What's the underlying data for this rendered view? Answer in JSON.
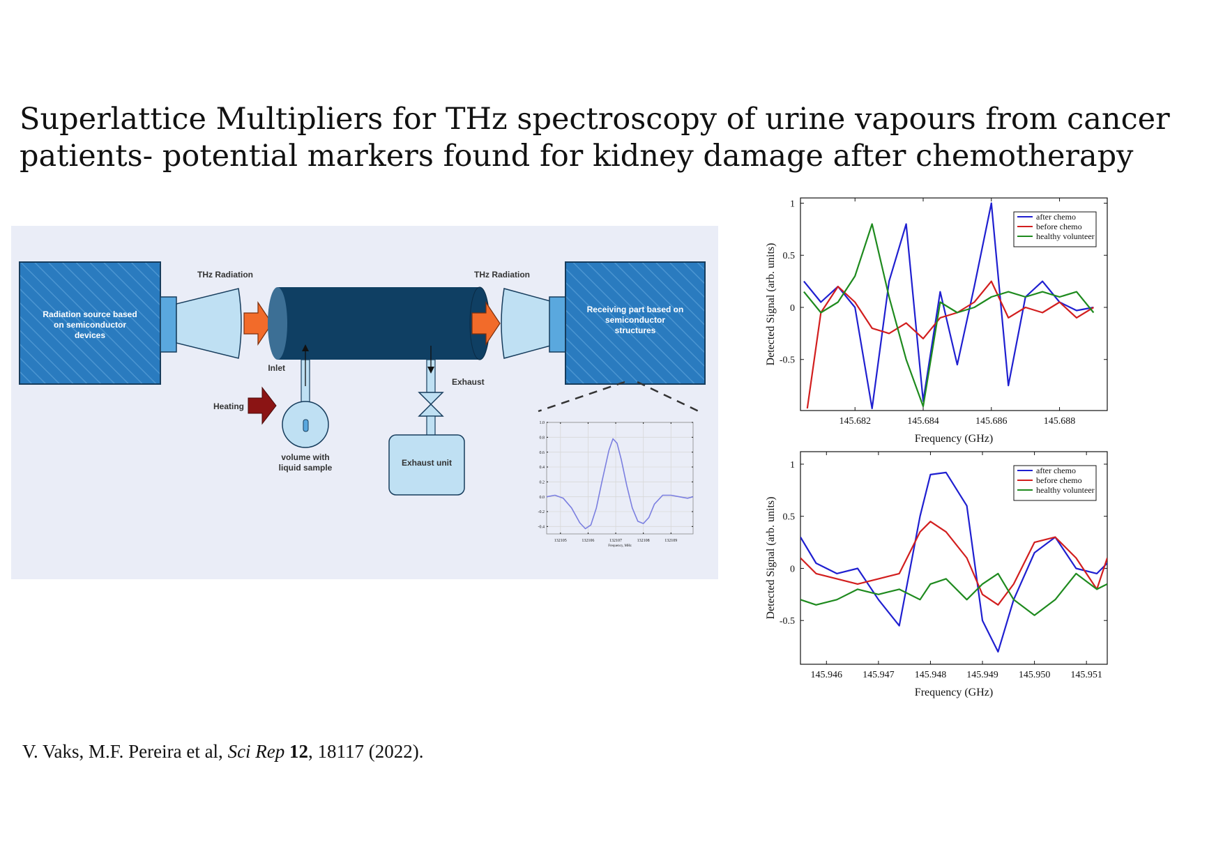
{
  "slide": {
    "title_line1": "Superlattice Multipliers  for THz spectroscopy of urine vapours from cancer",
    "title_line2": "patients- potential markers found for kidney damage after chemotherapy",
    "citation": {
      "authors": "V. Vaks, M.F. Pereira et al, ",
      "journal": "Sci Rep",
      "volume": "12",
      "rest": ", 18117 (2022)."
    }
  },
  "diagram": {
    "source_label": [
      "Radiation source based",
      "on semiconductor",
      "devices"
    ],
    "thz_left": "THz Radiation",
    "thz_right": "THz Radiation",
    "receiver_label": [
      "Receiving part based on",
      "semiconductor",
      "structures"
    ],
    "inlet": "Inlet",
    "exhaust": "Exhaust",
    "heating": "Heating",
    "volume_label": [
      "volume with",
      "liquid sample"
    ],
    "exhaust_unit": "Exhaust unit",
    "colors": {
      "box": "#2a7bbf",
      "tube": "#0f3f63",
      "cone": "#bfe0f3",
      "arrow": "#f26b2a",
      "heat": "#8b1414"
    }
  },
  "chart_data": [
    {
      "type": "line",
      "xlabel": "Frequency, MHz",
      "ylabel": "",
      "xlim": [
        132104.5,
        132109.8
      ],
      "ylim": [
        -0.5,
        1.0
      ],
      "x_ticks": [
        "132105",
        "132106",
        "132107",
        "132108",
        "132109"
      ],
      "y_ticks": [
        "1.0",
        "0.8",
        "0.6",
        "0.4",
        "0.2",
        "0.0",
        "-0.2",
        "-0.4"
      ],
      "grid": true,
      "series": [
        {
          "color": "#7b7fe0",
          "x": [
            132104.5,
            132104.8,
            132105.1,
            132105.4,
            132105.7,
            132105.9,
            132106.1,
            132106.3,
            132106.5,
            132106.75,
            132106.9,
            132107.05,
            132107.2,
            132107.4,
            132107.6,
            132107.8,
            132108.0,
            132108.2,
            132108.4,
            132108.7,
            132109.0,
            132109.3,
            132109.6,
            132109.8
          ],
          "y": [
            0.0,
            0.02,
            -0.02,
            -0.15,
            -0.35,
            -0.43,
            -0.38,
            -0.15,
            0.2,
            0.62,
            0.78,
            0.72,
            0.5,
            0.15,
            -0.15,
            -0.33,
            -0.36,
            -0.28,
            -0.1,
            0.02,
            0.02,
            0.0,
            -0.02,
            0.0
          ]
        }
      ]
    },
    {
      "type": "line",
      "xlabel": "Frequency (GHz)",
      "ylabel": "Detected Signal (arb. units)",
      "xlim": [
        145.6804,
        145.6894
      ],
      "ylim": [
        -0.99,
        1.05
      ],
      "x_ticks": [
        "145.682",
        "145.684",
        "145.686",
        "145.688"
      ],
      "y_ticks": [
        "1",
        "0.5",
        "0",
        "-0.5"
      ],
      "grid": false,
      "legend": "top-right",
      "series": [
        {
          "name": "after chemo",
          "color": "#1f1fd0",
          "x": [
            145.6805,
            145.681,
            145.6815,
            145.682,
            145.6825,
            145.683,
            145.6835,
            145.684,
            145.6845,
            145.685,
            145.6855,
            145.686,
            145.6865,
            145.687,
            145.6875,
            145.688,
            145.6885,
            145.689
          ],
          "y": [
            0.25,
            0.05,
            0.2,
            0.0,
            -0.97,
            0.25,
            0.8,
            -0.9,
            0.15,
            -0.55,
            0.2,
            1.0,
            -0.75,
            0.1,
            0.25,
            0.05,
            -0.03,
            0.0
          ]
        },
        {
          "name": "before chemo",
          "color": "#d21e1e",
          "x": [
            145.6806,
            145.681,
            145.6815,
            145.682,
            145.6825,
            145.683,
            145.6835,
            145.684,
            145.6845,
            145.685,
            145.6855,
            145.686,
            145.6865,
            145.687,
            145.6875,
            145.688,
            145.6885,
            145.689
          ],
          "y": [
            -0.97,
            -0.05,
            0.2,
            0.05,
            -0.2,
            -0.25,
            -0.15,
            -0.3,
            -0.1,
            -0.05,
            0.05,
            0.25,
            -0.1,
            0.0,
            -0.05,
            0.05,
            -0.1,
            0.0
          ]
        },
        {
          "name": "healthy volunteer",
          "color": "#1e8a1e",
          "x": [
            145.6805,
            145.681,
            145.6815,
            145.682,
            145.6825,
            145.683,
            145.6835,
            145.684,
            145.6845,
            145.685,
            145.6855,
            145.686,
            145.6865,
            145.687,
            145.6875,
            145.688,
            145.6885,
            145.689
          ],
          "y": [
            0.15,
            -0.05,
            0.05,
            0.3,
            0.8,
            0.1,
            -0.5,
            -0.95,
            0.05,
            -0.05,
            0.0,
            0.1,
            0.15,
            0.1,
            0.15,
            0.1,
            0.15,
            -0.05
          ]
        }
      ]
    },
    {
      "type": "line",
      "xlabel": "Frequency (GHz)",
      "ylabel": "Detected Signal (arb. units)",
      "xlim": [
        145.9455,
        145.9514
      ],
      "ylim": [
        -0.92,
        1.12
      ],
      "x_ticks": [
        "145.946",
        "145.947",
        "145.948",
        "145.949",
        "145.950",
        "145.951"
      ],
      "y_ticks": [
        "1",
        "0.5",
        "0",
        "-0.5"
      ],
      "grid": false,
      "legend": "top-right",
      "series": [
        {
          "name": "after chemo",
          "color": "#1f1fd0",
          "x": [
            145.9455,
            145.9458,
            145.9462,
            145.9466,
            145.947,
            145.9474,
            145.9478,
            145.948,
            145.9483,
            145.9487,
            145.949,
            145.9493,
            145.9496,
            145.95,
            145.9504,
            145.9508,
            145.9512,
            145.9514
          ],
          "y": [
            0.3,
            0.05,
            -0.05,
            0.0,
            -0.3,
            -0.55,
            0.5,
            0.9,
            0.92,
            0.6,
            -0.5,
            -0.8,
            -0.3,
            0.15,
            0.3,
            0.0,
            -0.05,
            0.05
          ]
        },
        {
          "name": "before chemo",
          "color": "#d21e1e",
          "x": [
            145.9455,
            145.9458,
            145.9462,
            145.9466,
            145.947,
            145.9474,
            145.9478,
            145.948,
            145.9483,
            145.9487,
            145.949,
            145.9493,
            145.9496,
            145.95,
            145.9504,
            145.9508,
            145.9512,
            145.9514
          ],
          "y": [
            0.1,
            -0.05,
            -0.1,
            -0.15,
            -0.1,
            -0.05,
            0.35,
            0.45,
            0.35,
            0.1,
            -0.25,
            -0.35,
            -0.15,
            0.25,
            0.3,
            0.1,
            -0.2,
            0.1
          ]
        },
        {
          "name": "healthy volunteer",
          "color": "#1e8a1e",
          "x": [
            145.9455,
            145.9458,
            145.9462,
            145.9466,
            145.947,
            145.9474,
            145.9478,
            145.948,
            145.9483,
            145.9487,
            145.949,
            145.9493,
            145.9496,
            145.95,
            145.9504,
            145.9508,
            145.9512,
            145.9514
          ],
          "y": [
            -0.3,
            -0.35,
            -0.3,
            -0.2,
            -0.25,
            -0.2,
            -0.3,
            -0.15,
            -0.1,
            -0.3,
            -0.15,
            -0.05,
            -0.3,
            -0.45,
            -0.3,
            -0.05,
            -0.2,
            -0.15
          ]
        }
      ]
    }
  ]
}
